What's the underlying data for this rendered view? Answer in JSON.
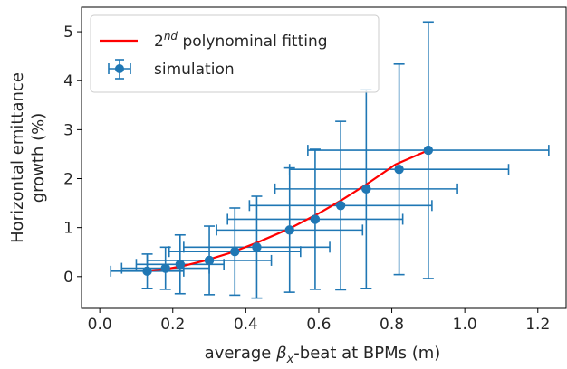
{
  "chart_data": {
    "type": "scatter",
    "title": "",
    "xlabel": {
      "prefix": "average ",
      "symbol": "β",
      "subscript": "x",
      "suffix": "-beat at BPMs (m)"
    },
    "ylabel": [
      "Horizontal emittance",
      "growth (%)"
    ],
    "xlim": [
      -0.05,
      1.28
    ],
    "ylim": [
      -0.65,
      5.5
    ],
    "x_ticks": [
      0.0,
      0.2,
      0.4,
      0.6,
      0.8,
      1.0,
      1.2
    ],
    "x_tick_labels": [
      "0.0",
      "0.2",
      "0.4",
      "0.6",
      "0.8",
      "1.0",
      "1.2"
    ],
    "y_ticks": [
      0,
      1,
      2,
      3,
      4,
      5
    ],
    "y_tick_labels": [
      "0",
      "1",
      "2",
      "3",
      "4",
      "5"
    ],
    "grid": false,
    "legend_position": "upper-left",
    "series": [
      {
        "name": "2nd polynominal fitting",
        "legend_parts": [
          "2",
          "nd",
          " polynominal fitting"
        ],
        "kind": "line",
        "color": "#ff0000",
        "x": [
          0.13,
          0.18,
          0.23,
          0.29,
          0.36,
          0.43,
          0.52,
          0.6,
          0.66,
          0.73,
          0.81,
          0.9
        ],
        "y": [
          0.12,
          0.15,
          0.22,
          0.33,
          0.49,
          0.69,
          0.98,
          1.29,
          1.55,
          1.88,
          2.29,
          2.58
        ]
      },
      {
        "name": "simulation",
        "kind": "errorbar",
        "color": "#1f77b4",
        "x": [
          0.13,
          0.18,
          0.22,
          0.3,
          0.37,
          0.43,
          0.52,
          0.59,
          0.66,
          0.73,
          0.82,
          0.9
        ],
        "y": [
          0.11,
          0.17,
          0.25,
          0.33,
          0.51,
          0.6,
          0.95,
          1.17,
          1.45,
          1.79,
          2.19,
          2.58
        ],
        "xerr": [
          0.1,
          0.12,
          0.12,
          0.17,
          0.18,
          0.2,
          0.2,
          0.24,
          0.25,
          0.25,
          0.3,
          0.33
        ],
        "yerr": [
          0.35,
          0.43,
          0.6,
          0.7,
          0.89,
          1.04,
          1.27,
          1.43,
          1.72,
          2.03,
          2.15,
          2.62
        ]
      }
    ]
  }
}
